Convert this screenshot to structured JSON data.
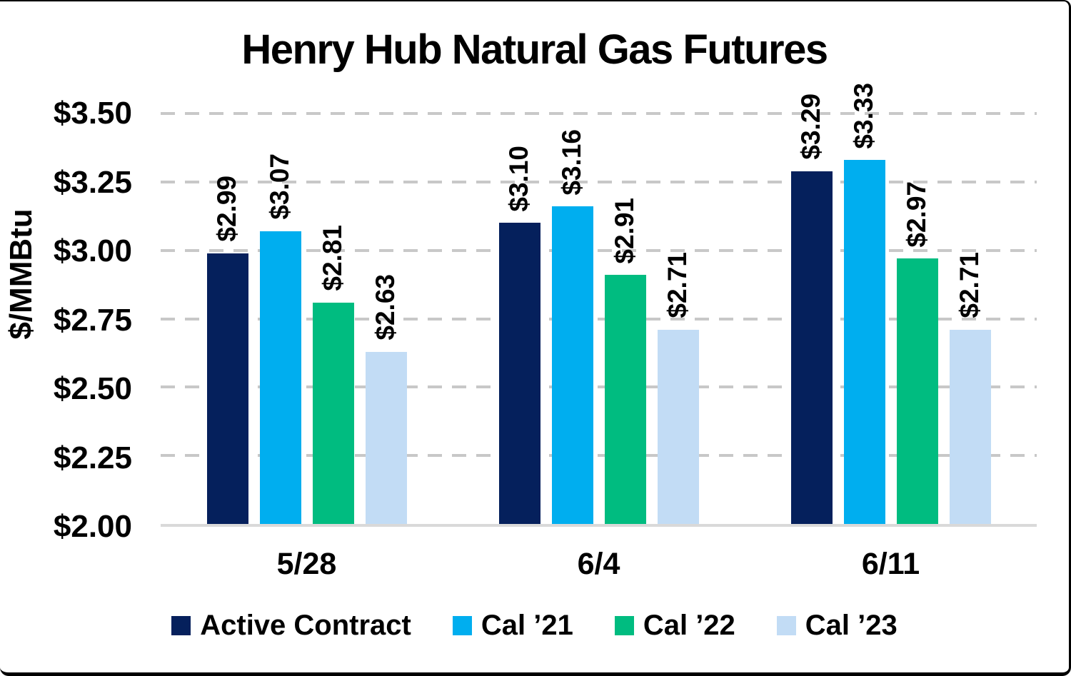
{
  "chart_data": {
    "type": "bar",
    "title": "Henry Hub Natural Gas Futures",
    "ylabel": "$/MMBtu",
    "ylim": [
      2.0,
      3.5
    ],
    "ytick_step": 0.25,
    "yticks": [
      {
        "value": 3.5,
        "label": "$3.50"
      },
      {
        "value": 3.25,
        "label": "$3.25"
      },
      {
        "value": 3.0,
        "label": "$3.00"
      },
      {
        "value": 2.75,
        "label": "$2.75"
      },
      {
        "value": 2.5,
        "label": "$2.50"
      },
      {
        "value": 2.25,
        "label": "$2.25"
      },
      {
        "value": 2.0,
        "label": "$2.00"
      }
    ],
    "categories": [
      "5/28",
      "6/4",
      "6/11"
    ],
    "series": [
      {
        "name": "Active Contract",
        "color": "#05205C",
        "values": [
          2.99,
          3.1,
          3.29
        ],
        "data_labels": [
          "$2.99",
          "$3.10",
          "$3.29"
        ]
      },
      {
        "name": "Cal ’21",
        "color": "#00AEEF",
        "values": [
          3.07,
          3.16,
          3.33
        ],
        "data_labels": [
          "$3.07",
          "$3.16",
          "$3.33"
        ]
      },
      {
        "name": "Cal ’22",
        "color": "#00BC80",
        "values": [
          2.81,
          2.91,
          2.97
        ],
        "data_labels": [
          "$2.81",
          "$2.91",
          "$2.97"
        ]
      },
      {
        "name": "Cal ’23",
        "color": "#C2DCF5",
        "values": [
          2.63,
          2.71,
          2.71
        ],
        "data_labels": [
          "$2.63",
          "$2.71",
          "$2.71"
        ]
      }
    ],
    "grid": {
      "style": "dashed",
      "axis": "y"
    },
    "legend_position": "bottom"
  },
  "colors": {
    "gridline": "#C8C8C8",
    "baseline": "#D9D9D9",
    "text": "#000000",
    "background": "#FFFFFF",
    "frame_border": "#000000"
  }
}
